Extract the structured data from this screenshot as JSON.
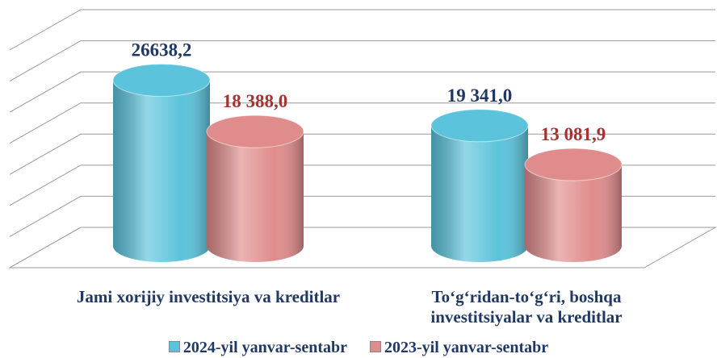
{
  "chart_data": {
    "type": "bar",
    "categories": [
      "Jami xorijiy investitsiya va kreditlar",
      "To‘g‘ridan-to‘g‘ri, boshqa investitsiyalar va kreditlar"
    ],
    "series": [
      {
        "name": "2024-yil yanvar-sentabr",
        "color": "#5bc3db",
        "label_color": "#1f3864",
        "values": [
          26638.2,
          19341.0
        ],
        "value_labels": [
          "26638,2",
          "19 341,0"
        ]
      },
      {
        "name": "2023-yil yanvar-sentabr",
        "color": "#e08c8c",
        "label_color": "#a33432",
        "values": [
          18388.0,
          13081.9
        ],
        "value_labels": [
          "18 388,0",
          "13 081,9"
        ]
      }
    ],
    "ylim": [
      0,
      35000
    ],
    "yticks": [
      0,
      5000,
      10000,
      15000,
      20000,
      25000,
      30000,
      35000
    ],
    "grid": true
  }
}
